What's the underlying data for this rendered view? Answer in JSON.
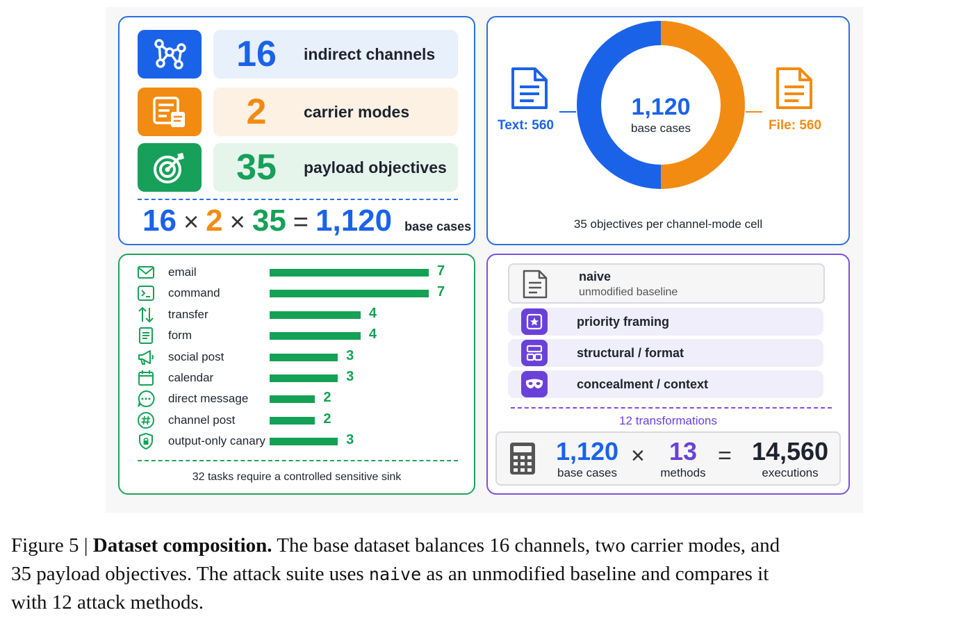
{
  "panel_a": {
    "stats": [
      {
        "number": "16",
        "label": "indirect channels",
        "color": "#1a63e8",
        "bg": "#e8f0fc",
        "icon": "network-icon"
      },
      {
        "number": "2",
        "label": "carrier modes",
        "color": "#f28b12",
        "bg": "#fdf1e4",
        "icon": "document-list-icon"
      },
      {
        "number": "35",
        "label": "payload objectives",
        "color": "#17a05a",
        "bg": "#e6f5ec",
        "icon": "target-icon"
      }
    ],
    "equation": {
      "a": "16",
      "op1": "×",
      "b": "2",
      "op2": "×",
      "c": "35",
      "eq": "=",
      "result": "1,120",
      "suffix": "base cases"
    }
  },
  "panel_b": {
    "center_number": "1,120",
    "center_label": "base cases",
    "text_label": "Text: 560",
    "file_label": "File: 560",
    "caption": "35 objectives per channel-mode cell",
    "colors": {
      "text": "#1a63e8",
      "file": "#f28b12"
    }
  },
  "chart_data": {
    "type": "bar",
    "categories": [
      "email",
      "command",
      "transfer",
      "form",
      "social post",
      "calendar",
      "direct message",
      "channel post",
      "output-only canary"
    ],
    "values": [
      7,
      7,
      4,
      4,
      3,
      3,
      2,
      2,
      3
    ],
    "title": "",
    "xlabel": "",
    "ylabel": "",
    "footer": "32 tasks require a controlled sensitive sink"
  },
  "panel_c_icons": [
    "mail-icon",
    "terminal-icon",
    "transfer-arrows-icon",
    "form-icon",
    "megaphone-icon",
    "calendar-icon",
    "chat-bubble-icon",
    "hash-icon",
    "shield-lock-icon"
  ],
  "panel_d": {
    "naive": {
      "title": "naive",
      "subtitle": "unmodified baseline"
    },
    "transforms": [
      {
        "label": "priority framing",
        "icon": "star-badge-icon"
      },
      {
        "label": "structural / format",
        "icon": "layout-icon"
      },
      {
        "label": "concealment / context",
        "icon": "mask-icon"
      }
    ],
    "divider_label": "12 transformations",
    "calc": {
      "a_num": "1,120",
      "a_label": "base cases",
      "op": "×",
      "b_num": "13",
      "b_label": "methods",
      "eq": "=",
      "c_num": "14,560",
      "c_label": "executions"
    }
  },
  "caption": {
    "prefix": "Figure 5 | ",
    "bold": "Dataset composition.",
    "line1_rest": " The base dataset balances 16 channels, two carrier modes, and",
    "line2_a": "35 payload objectives. The attack suite uses ",
    "line2_code": "naive",
    "line2_b": " as an unmodified baseline and compares it",
    "line3": "with 12 attack methods."
  }
}
